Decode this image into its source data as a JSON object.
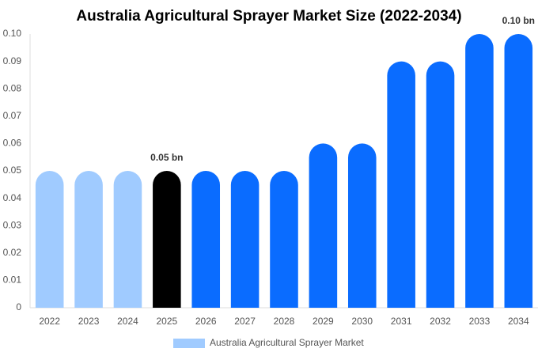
{
  "chart_data": {
    "type": "bar",
    "title": "Australia Agricultural Sprayer Market Size (2022-2034)",
    "categories": [
      "2022",
      "2023",
      "2024",
      "2025",
      "2026",
      "2027",
      "2028",
      "2029",
      "2030",
      "2031",
      "2032",
      "2033",
      "2034"
    ],
    "series": [
      {
        "name": "Australia Agricultural Sprayer Market",
        "color": "#a0cbff",
        "colors": [
          "#a0cbff",
          "#a0cbff",
          "#a0cbff",
          "#000000",
          "#0a6cff",
          "#0a6cff",
          "#0a6cff",
          "#0a6cff",
          "#0a6cff",
          "#0a6cff",
          "#0a6cff",
          "#0a6cff",
          "#0a6cff"
        ],
        "values": [
          0.05,
          0.05,
          0.05,
          0.05,
          0.05,
          0.05,
          0.05,
          0.06,
          0.06,
          0.09,
          0.09,
          0.1,
          0.1
        ],
        "value_labels": [
          null,
          null,
          null,
          "0.05 bn",
          null,
          null,
          null,
          null,
          null,
          null,
          null,
          null,
          "0.10 bn"
        ]
      }
    ],
    "ylim": [
      0,
      0.1
    ],
    "yticks": [
      0,
      0.01,
      0.02,
      0.03,
      0.04,
      0.05,
      0.06,
      0.07,
      0.08,
      0.09,
      {
        "value": 0.1,
        "label": "0.10"
      }
    ],
    "grid": false
  }
}
